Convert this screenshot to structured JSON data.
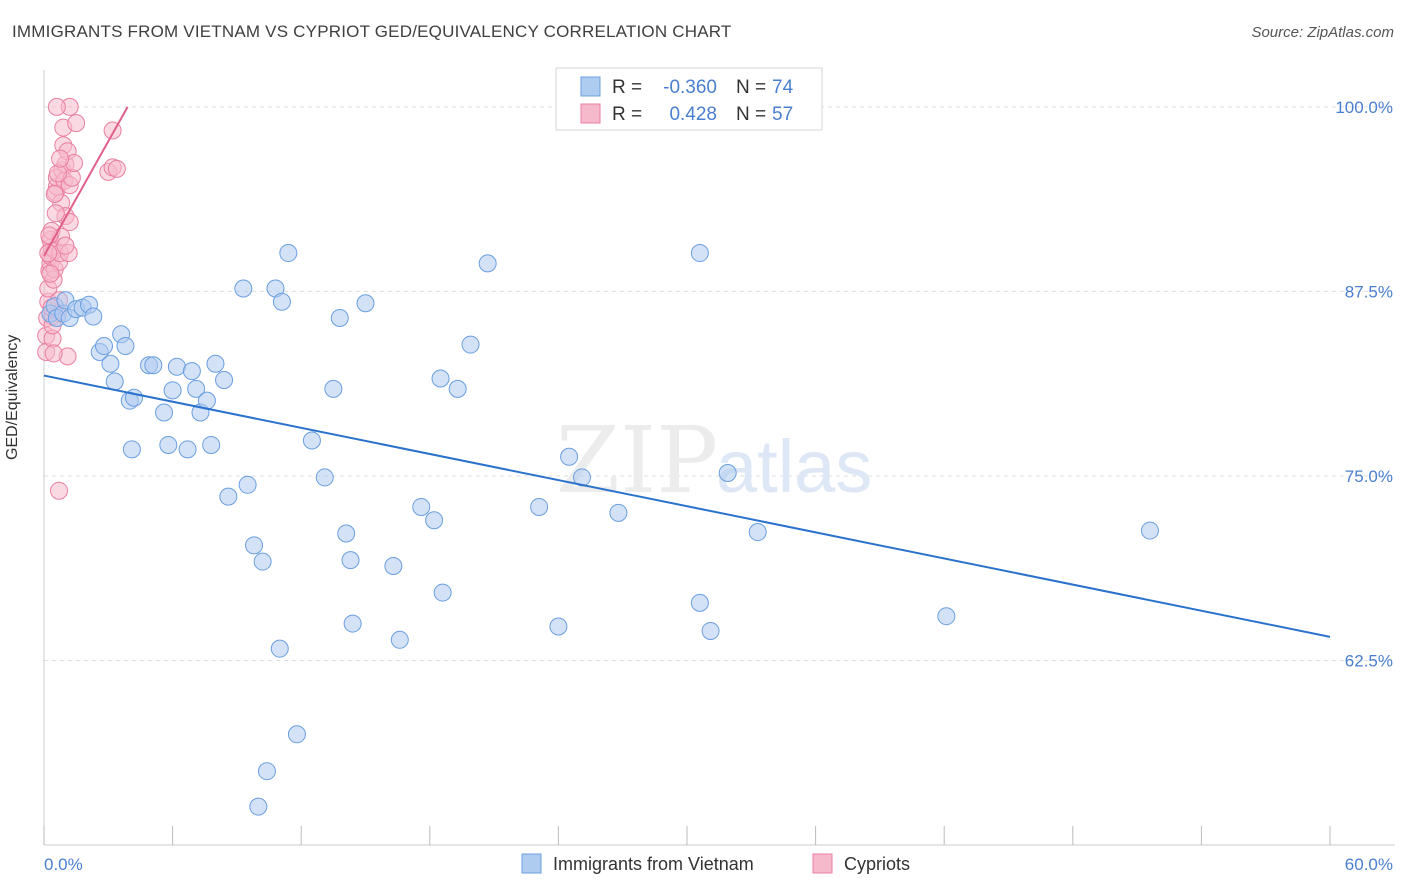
{
  "header": {
    "title": "IMMIGRANTS FROM VIETNAM VS CYPRIOT GED/EQUIVALENCY CORRELATION CHART",
    "source": "Source: ZipAtlas.com"
  },
  "watermark": "ZIPatlas",
  "colors": {
    "blue_fill": "#aecbf0",
    "blue_stroke": "#6a9fe0",
    "blue_line": "#2a72cc",
    "pink_fill": "#f6b9cc",
    "pink_stroke": "#ea7fa0",
    "pink_line": "#e0608a",
    "tick_label": "#4a7fd0",
    "grid": "#dddddd"
  },
  "legend_stats": [
    {
      "r_label": "R =",
      "r_value": "-0.360",
      "n_label": "N =",
      "n_value": "74",
      "series": "blue"
    },
    {
      "r_label": "R =",
      "r_value": "0.428",
      "n_label": "N =",
      "n_value": "57",
      "series": "pink"
    }
  ],
  "chart_data": {
    "type": "scatter",
    "xlabel": "",
    "ylabel": "GED/Equivalency",
    "xlim": [
      0,
      60
    ],
    "ylim": [
      50,
      102.5
    ],
    "x_tick_labels": [
      "0.0%",
      "60.0%"
    ],
    "y_ticks": [
      62.5,
      75.0,
      87.5,
      100.0
    ],
    "y_tick_labels": [
      "62.5%",
      "75.0%",
      "87.5%",
      "100.0%"
    ],
    "grid": true,
    "legend_position": "bottom",
    "series": [
      {
        "name": "Immigrants from Vietnam",
        "color": "blue",
        "r": -0.36,
        "n": 74,
        "trend": [
          [
            0,
            81.8
          ],
          [
            60,
            64.1
          ]
        ],
        "points": [
          [
            0.3,
            86.0
          ],
          [
            0.5,
            86.5
          ],
          [
            0.6,
            85.7
          ],
          [
            0.9,
            86.0
          ],
          [
            1.0,
            86.9
          ],
          [
            1.2,
            85.7
          ],
          [
            1.5,
            86.3
          ],
          [
            1.8,
            86.4
          ],
          [
            2.1,
            86.6
          ],
          [
            2.3,
            85.8
          ],
          [
            2.6,
            83.4
          ],
          [
            2.8,
            83.8
          ],
          [
            3.1,
            82.6
          ],
          [
            3.3,
            81.4
          ],
          [
            3.6,
            84.6
          ],
          [
            3.8,
            83.8
          ],
          [
            4.0,
            80.1
          ],
          [
            4.2,
            80.3
          ],
          [
            4.1,
            76.8
          ],
          [
            4.9,
            82.5
          ],
          [
            5.1,
            82.5
          ],
          [
            5.6,
            79.3
          ],
          [
            5.8,
            77.1
          ],
          [
            6.0,
            80.8
          ],
          [
            6.2,
            82.4
          ],
          [
            6.7,
            76.8
          ],
          [
            6.9,
            82.1
          ],
          [
            7.1,
            80.9
          ],
          [
            7.3,
            79.3
          ],
          [
            7.6,
            80.1
          ],
          [
            7.8,
            77.1
          ],
          [
            8.0,
            82.6
          ],
          [
            8.4,
            81.5
          ],
          [
            8.6,
            73.6
          ],
          [
            9.3,
            87.7
          ],
          [
            9.5,
            74.4
          ],
          [
            9.8,
            70.3
          ],
          [
            10.2,
            69.2
          ],
          [
            10.8,
            87.7
          ],
          [
            11.1,
            86.8
          ],
          [
            11.4,
            90.1
          ],
          [
            11.0,
            63.3
          ],
          [
            11.8,
            57.5
          ],
          [
            12.5,
            77.4
          ],
          [
            13.1,
            74.9
          ],
          [
            13.5,
            80.9
          ],
          [
            13.8,
            85.7
          ],
          [
            14.1,
            71.1
          ],
          [
            14.3,
            69.3
          ],
          [
            14.4,
            65.0
          ],
          [
            15.0,
            86.7
          ],
          [
            16.3,
            68.9
          ],
          [
            16.6,
            63.9
          ],
          [
            17.6,
            72.9
          ],
          [
            18.2,
            72.0
          ],
          [
            18.6,
            67.1
          ],
          [
            18.5,
            81.6
          ],
          [
            19.3,
            80.9
          ],
          [
            19.9,
            83.9
          ],
          [
            20.7,
            89.4
          ],
          [
            23.1,
            72.9
          ],
          [
            24.0,
            64.8
          ],
          [
            24.5,
            76.3
          ],
          [
            25.1,
            74.9
          ],
          [
            26.8,
            72.5
          ],
          [
            30.6,
            90.1
          ],
          [
            30.6,
            66.4
          ],
          [
            31.1,
            64.5
          ],
          [
            31.9,
            75.2
          ],
          [
            33.3,
            71.2
          ],
          [
            42.1,
            65.5
          ],
          [
            51.6,
            71.3
          ],
          [
            10.0,
            52.6
          ],
          [
            10.4,
            55.0
          ]
        ]
      },
      {
        "name": "Cypriots",
        "color": "pink",
        "r": 0.428,
        "n": 57,
        "trend": [
          [
            0.0,
            89.9
          ],
          [
            3.9,
            100.0
          ]
        ],
        "points": [
          [
            0.1,
            84.5
          ],
          [
            0.1,
            83.4
          ],
          [
            0.15,
            85.7
          ],
          [
            0.2,
            86.8
          ],
          [
            0.2,
            87.7
          ],
          [
            0.25,
            88.9
          ],
          [
            0.3,
            89.4
          ],
          [
            0.3,
            89.9
          ],
          [
            0.35,
            90.5
          ],
          [
            0.3,
            91.0
          ],
          [
            0.35,
            91.6
          ],
          [
            0.4,
            85.8
          ],
          [
            0.4,
            84.3
          ],
          [
            0.45,
            88.3
          ],
          [
            0.5,
            89.0
          ],
          [
            0.5,
            90.3
          ],
          [
            0.55,
            94.2
          ],
          [
            0.6,
            94.6
          ],
          [
            0.6,
            95.2
          ],
          [
            0.65,
            86.0
          ],
          [
            0.7,
            86.9
          ],
          [
            0.7,
            89.5
          ],
          [
            0.75,
            90.1
          ],
          [
            0.8,
            91.2
          ],
          [
            0.8,
            93.5
          ],
          [
            0.85,
            95.7
          ],
          [
            0.9,
            97.4
          ],
          [
            0.9,
            98.6
          ],
          [
            0.95,
            95.0
          ],
          [
            1.0,
            96.1
          ],
          [
            1.0,
            92.6
          ],
          [
            1.1,
            83.1
          ],
          [
            1.1,
            97.0
          ],
          [
            1.15,
            90.1
          ],
          [
            1.2,
            92.2
          ],
          [
            1.2,
            94.7
          ],
          [
            1.3,
            95.2
          ],
          [
            1.4,
            96.2
          ],
          [
            1.5,
            98.9
          ],
          [
            0.7,
            74.0
          ],
          [
            1.2,
            100.0
          ],
          [
            3.2,
            98.4
          ],
          [
            3.0,
            95.6
          ],
          [
            3.2,
            95.9
          ],
          [
            3.4,
            95.8
          ],
          [
            0.6,
            100.0
          ],
          [
            0.5,
            94.1
          ],
          [
            0.35,
            86.4
          ],
          [
            0.4,
            85.2
          ],
          [
            0.2,
            90.1
          ],
          [
            0.25,
            91.3
          ],
          [
            0.3,
            88.7
          ],
          [
            0.45,
            83.3
          ],
          [
            0.55,
            92.8
          ],
          [
            0.65,
            95.5
          ],
          [
            0.75,
            96.5
          ],
          [
            1.0,
            90.6
          ]
        ]
      }
    ]
  }
}
